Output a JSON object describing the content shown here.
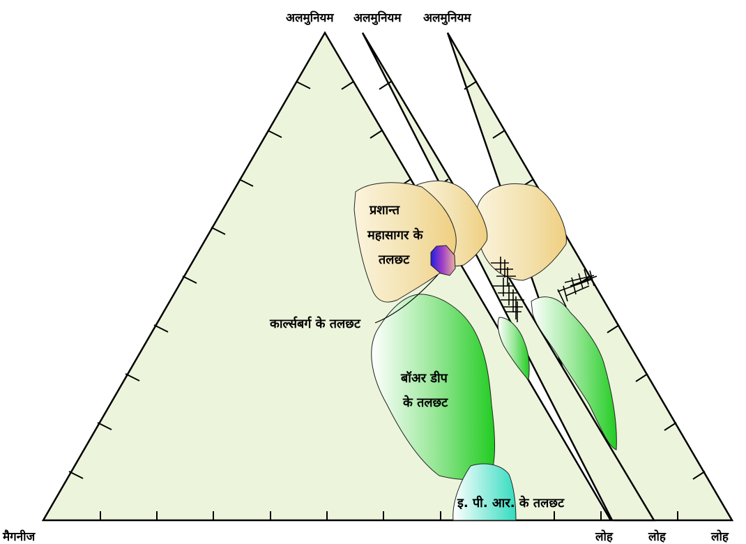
{
  "vertices": {
    "apex_labels": [
      "अलमुनियम",
      "अलमुनियम",
      "अलमुनियम"
    ],
    "bottom_left_label": "मैगनीज",
    "bottom_right_labels": [
      "लोह",
      "लोह",
      "लोह"
    ]
  },
  "regions": {
    "pacific": {
      "label_lines": [
        "प्रशान्त",
        "महासागर के",
        "तलछट"
      ]
    },
    "karlsberg": {
      "label": "कार्ल्सबर्ग के तलछट"
    },
    "bauer": {
      "label_lines": [
        "बॉअर डीप",
        "के तलछट"
      ]
    },
    "epr": {
      "label": "इ. पी. आर. के तलछट"
    }
  },
  "colors": {
    "background": "#ecf5dc",
    "pacific_fill": "#f0d890",
    "bauer_fill": "#2ecc2e",
    "epr_fill": "#3de0c0",
    "karlsberg_fill": "#5a2fd6"
  }
}
